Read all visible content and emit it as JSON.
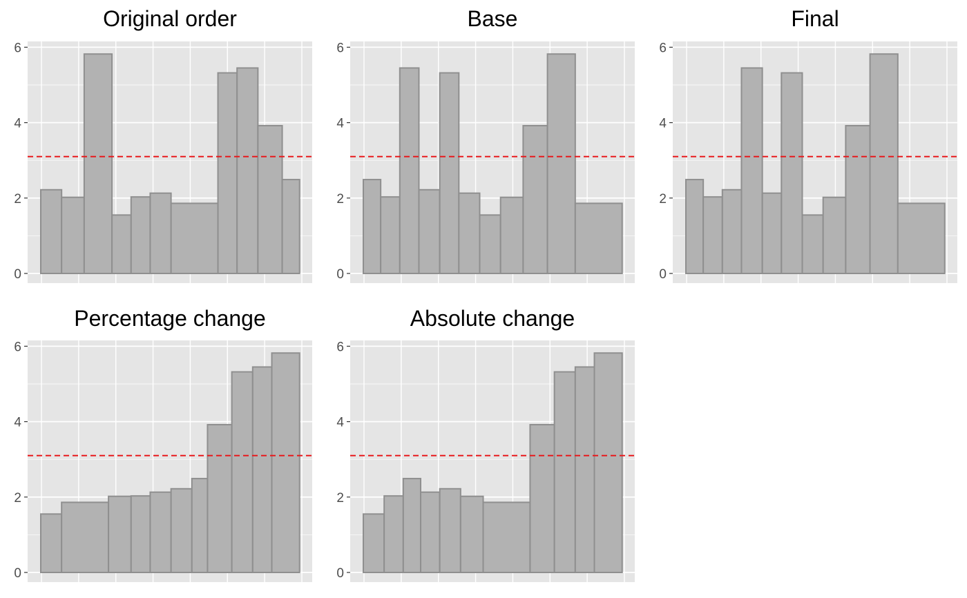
{
  "chart_data": [
    {
      "type": "bar",
      "title": "Original order",
      "ylim": [
        0,
        6.3
      ],
      "yticks": [
        "0",
        "2",
        "4",
        "6"
      ],
      "reference_line": 3.1,
      "bars": [
        {
          "start": 0,
          "end": 0.6,
          "value": 2.22
        },
        {
          "start": 0.6,
          "end": 1.25,
          "value": 2.02
        },
        {
          "start": 1.25,
          "end": 2.05,
          "value": 5.82
        },
        {
          "start": 2.05,
          "end": 2.6,
          "value": 1.55
        },
        {
          "start": 2.6,
          "end": 3.15,
          "value": 2.03
        },
        {
          "start": 3.15,
          "end": 3.75,
          "value": 2.13
        },
        {
          "start": 3.75,
          "end": 5.1,
          "value": 1.86
        },
        {
          "start": 5.1,
          "end": 5.65,
          "value": 5.32
        },
        {
          "start": 5.65,
          "end": 6.25,
          "value": 5.45
        },
        {
          "start": 6.25,
          "end": 6.95,
          "value": 3.92
        },
        {
          "start": 6.95,
          "end": 7.45,
          "value": 2.49
        }
      ]
    },
    {
      "type": "bar",
      "title": "Base",
      "ylim": [
        0,
        6.3
      ],
      "yticks": [
        "0",
        "2",
        "4",
        "6"
      ],
      "reference_line": 3.1,
      "bars": [
        {
          "start": 0,
          "end": 0.5,
          "value": 2.49
        },
        {
          "start": 0.5,
          "end": 1.05,
          "value": 2.03
        },
        {
          "start": 1.05,
          "end": 1.6,
          "value": 5.45
        },
        {
          "start": 1.6,
          "end": 2.2,
          "value": 2.22
        },
        {
          "start": 2.2,
          "end": 2.75,
          "value": 5.32
        },
        {
          "start": 2.75,
          "end": 3.35,
          "value": 2.13
        },
        {
          "start": 3.35,
          "end": 3.95,
          "value": 1.55
        },
        {
          "start": 3.95,
          "end": 4.6,
          "value": 2.02
        },
        {
          "start": 4.6,
          "end": 5.3,
          "value": 3.92
        },
        {
          "start": 5.3,
          "end": 6.1,
          "value": 5.82
        },
        {
          "start": 6.1,
          "end": 7.45,
          "value": 1.86
        }
      ]
    },
    {
      "type": "bar",
      "title": "Final",
      "ylim": [
        0,
        6.3
      ],
      "yticks": [
        "0",
        "2",
        "4",
        "6"
      ],
      "reference_line": 3.1,
      "bars": [
        {
          "start": 0,
          "end": 0.5,
          "value": 2.49
        },
        {
          "start": 0.5,
          "end": 1.05,
          "value": 2.03
        },
        {
          "start": 1.05,
          "end": 1.6,
          "value": 2.22
        },
        {
          "start": 1.6,
          "end": 2.2,
          "value": 5.45
        },
        {
          "start": 2.2,
          "end": 2.75,
          "value": 2.13
        },
        {
          "start": 2.75,
          "end": 3.35,
          "value": 5.32
        },
        {
          "start": 3.35,
          "end": 3.95,
          "value": 1.55
        },
        {
          "start": 3.95,
          "end": 4.6,
          "value": 2.02
        },
        {
          "start": 4.6,
          "end": 5.3,
          "value": 3.92
        },
        {
          "start": 5.3,
          "end": 6.1,
          "value": 5.82
        },
        {
          "start": 6.1,
          "end": 7.45,
          "value": 1.86
        }
      ]
    },
    {
      "type": "bar",
      "title": "Percentage change",
      "ylim": [
        0,
        6.3
      ],
      "yticks": [
        "0",
        "2",
        "4",
        "6"
      ],
      "reference_line": 3.1,
      "bars": [
        {
          "start": 0,
          "end": 0.6,
          "value": 1.55
        },
        {
          "start": 0.6,
          "end": 1.95,
          "value": 1.86
        },
        {
          "start": 1.95,
          "end": 2.6,
          "value": 2.02
        },
        {
          "start": 2.6,
          "end": 3.15,
          "value": 2.03
        },
        {
          "start": 3.15,
          "end": 3.75,
          "value": 2.13
        },
        {
          "start": 3.75,
          "end": 4.35,
          "value": 2.22
        },
        {
          "start": 4.35,
          "end": 4.8,
          "value": 2.49
        },
        {
          "start": 4.8,
          "end": 5.5,
          "value": 3.92
        },
        {
          "start": 5.5,
          "end": 6.1,
          "value": 5.32
        },
        {
          "start": 6.1,
          "end": 6.65,
          "value": 5.45
        },
        {
          "start": 6.65,
          "end": 7.45,
          "value": 5.82
        }
      ]
    },
    {
      "type": "bar",
      "title": "Absolute change",
      "ylim": [
        0,
        6.3
      ],
      "yticks": [
        "0",
        "2",
        "4",
        "6"
      ],
      "reference_line": 3.1,
      "bars": [
        {
          "start": 0,
          "end": 0.6,
          "value": 1.55
        },
        {
          "start": 0.6,
          "end": 1.15,
          "value": 2.03
        },
        {
          "start": 1.15,
          "end": 1.65,
          "value": 2.49
        },
        {
          "start": 1.65,
          "end": 2.2,
          "value": 2.13
        },
        {
          "start": 2.2,
          "end": 2.8,
          "value": 2.22
        },
        {
          "start": 2.8,
          "end": 3.45,
          "value": 2.02
        },
        {
          "start": 3.45,
          "end": 4.8,
          "value": 1.86
        },
        {
          "start": 4.8,
          "end": 5.5,
          "value": 3.92
        },
        {
          "start": 5.5,
          "end": 6.1,
          "value": 5.32
        },
        {
          "start": 6.1,
          "end": 6.65,
          "value": 5.45
        },
        {
          "start": 6.65,
          "end": 7.45,
          "value": 5.82
        }
      ]
    }
  ],
  "colors": {
    "panel_background": "#e5e5e5",
    "grid": "#ffffff",
    "bar_fill": "#b2b2b2",
    "bar_stroke": "#8f8f8f",
    "reference_line": "#e8191c",
    "tick_text": "#4d4d4d",
    "title_text": "#000000"
  }
}
